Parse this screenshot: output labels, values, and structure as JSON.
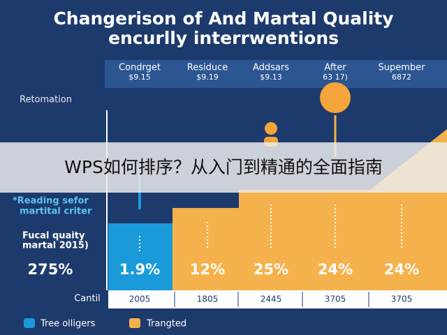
{
  "header": {
    "title_lines": [
      "Changerison of And Martal Quality",
      "encurlly interrwentions"
    ]
  },
  "columns": [
    {
      "name": "Condrget",
      "value": "$9.15",
      "percent": "1.9%",
      "year": "2005"
    },
    {
      "name": "Residuce",
      "value": "$9.19",
      "percent": "12%",
      "year": "1805"
    },
    {
      "name": "Addsars",
      "value": "$9.13",
      "percent": "25%",
      "year": "2445"
    },
    {
      "name": "After",
      "value": "63 17)",
      "percent": "24%",
      "year": "3705"
    },
    {
      "name": "Supember",
      "value": "6872",
      "percent": "24%",
      "year": "3705"
    }
  ],
  "side": {
    "label": "Retomation",
    "note_lines": [
      "*Reading sefor",
      "martital criter"
    ],
    "metric_lines": [
      "Fucal quaity",
      "martal 2015)"
    ],
    "metric_value": "275%",
    "footer_label": "Cantil"
  },
  "legend": [
    "Tree olligers",
    "Trangted"
  ],
  "banner": "WPS如何排序？从入门到精通的全面指南"
}
